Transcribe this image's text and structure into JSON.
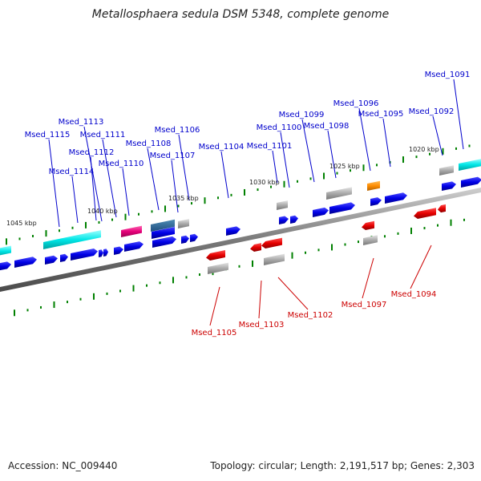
{
  "title": "Metallosphaera sedula DSM 5348, complete genome",
  "accession": "Accession: NC_009440",
  "topology": "Topology: circular; Length: 2,191,517 bp; Genes: 2,303",
  "colors": {
    "forward_gene": "#0000e6",
    "reverse_gene": "#e60000",
    "forward_label": "#0000cc",
    "reverse_label": "#cc0000",
    "rna": "#00e6e6",
    "pseudo": "#aaaaaa",
    "special_pink": "#e6007a",
    "special_orange": "#ff8c00",
    "backbone": "#777777",
    "ticks": "#008000"
  },
  "kbp_markers": [
    "1045 kbp",
    "1040 kbp",
    "1035 kbp",
    "1030 kbp",
    "1025 kbp",
    "1020 kbp"
  ],
  "forward_labels": [
    "Msed_1091",
    "Msed_1092",
    "Msed_1095",
    "Msed_1096",
    "Msed_1098",
    "Msed_1099",
    "Msed_1100",
    "Msed_1101",
    "Msed_1104",
    "Msed_1106",
    "Msed_1107",
    "Msed_1108",
    "Msed_1110",
    "Msed_1111",
    "Msed_1112",
    "Msed_1113",
    "Msed_1114",
    "Msed_1115"
  ],
  "reverse_labels": [
    "Msed_1094",
    "Msed_1097",
    "Msed_1102",
    "Msed_1103",
    "Msed_1105"
  ]
}
